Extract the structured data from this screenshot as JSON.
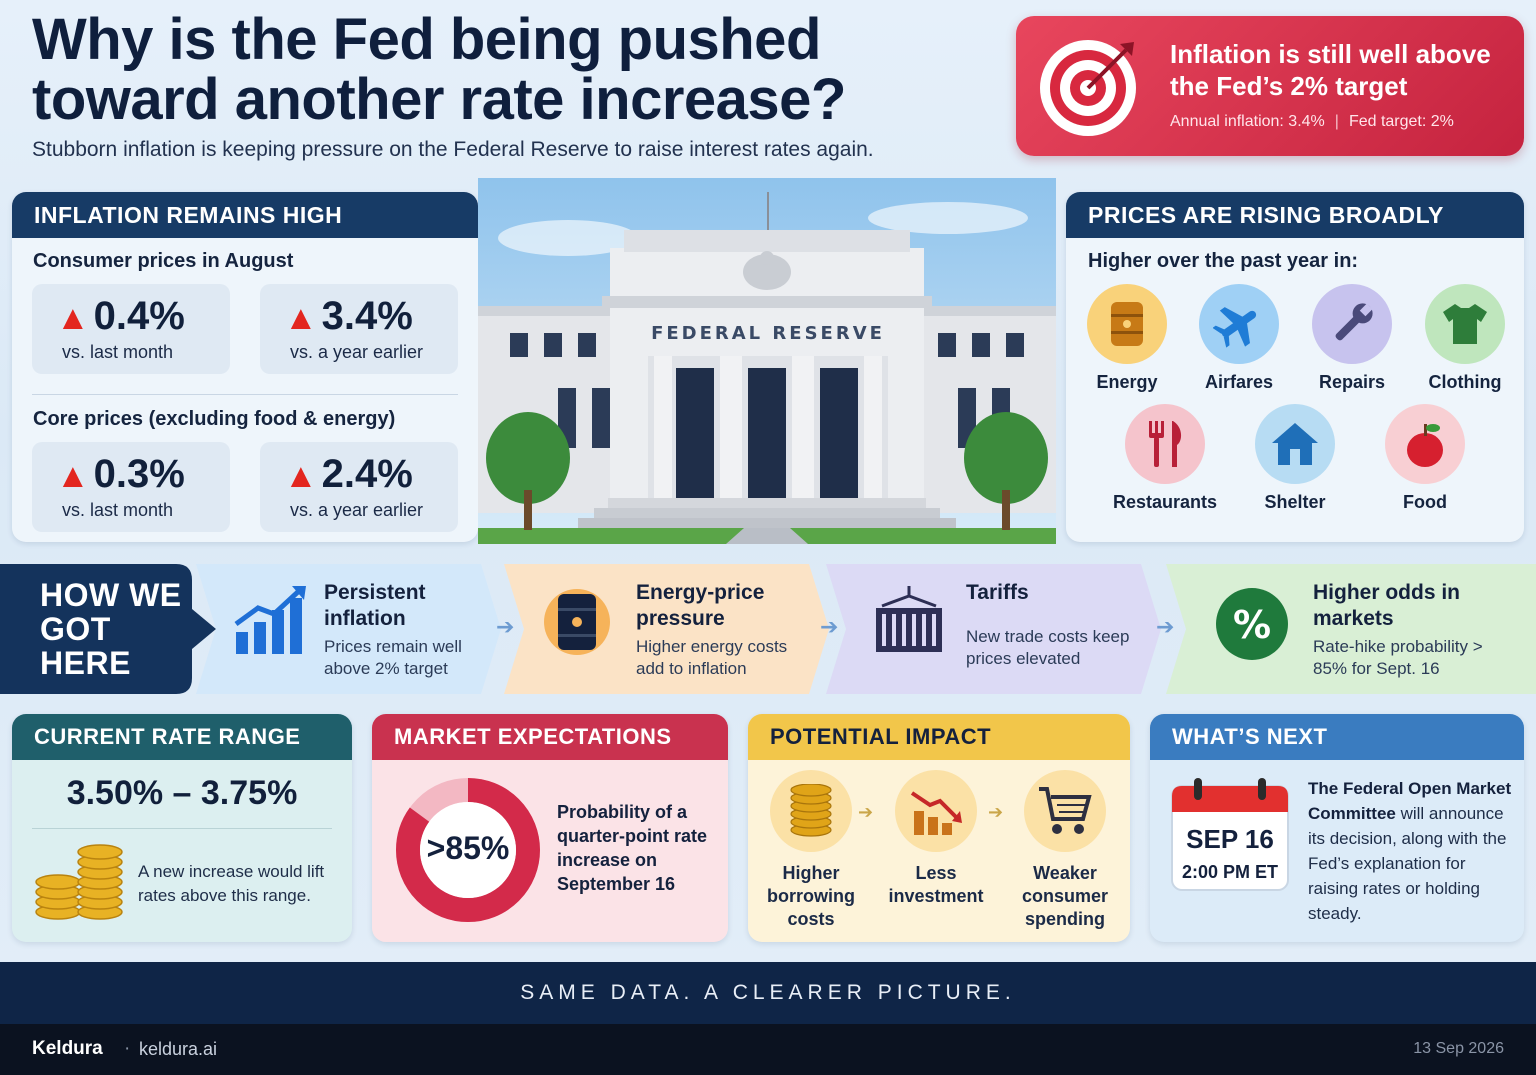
{
  "header": {
    "title": "Why is the Fed being pushed toward another rate increase?",
    "subtitle": "Stubborn inflation is keeping pressure on the Federal Reserve to raise interest rates again."
  },
  "target_card": {
    "headline": "Inflation is still well above the Fed’s 2% target",
    "annual": "Annual inflation: 3.4%",
    "separator": "|",
    "target": "Fed target: 2%"
  },
  "inflation": {
    "heading": "INFLATION REMAINS HIGH",
    "consumer_label": "Consumer prices in August",
    "consumer_month_value": "0.4%",
    "consumer_month_caption": "vs. last month",
    "consumer_year_value": "3.4%",
    "consumer_year_caption": "vs. a year earlier",
    "core_label": "Core prices (excluding food & energy)",
    "core_month_value": "0.3%",
    "core_month_caption": "vs. last month",
    "core_year_value": "2.4%",
    "core_year_caption": "vs. a year earlier"
  },
  "building": {
    "sign": "FEDERAL RESERVE"
  },
  "prices": {
    "heading": "PRICES ARE RISING BROADLY",
    "subheading": "Higher over the past year in:",
    "categories": [
      {
        "label": "Energy",
        "icon": "oil-barrel-icon",
        "color": "#f9d27a"
      },
      {
        "label": "Airfares",
        "icon": "airplane-icon",
        "color": "#9fd0f5"
      },
      {
        "label": "Repairs",
        "icon": "wrench-icon",
        "color": "#c7c3ee"
      },
      {
        "label": "Clothing",
        "icon": "shirt-icon",
        "color": "#bfe6bd"
      },
      {
        "label": "Restaurants",
        "icon": "fork-knife-icon",
        "color": "#f5c4cc"
      },
      {
        "label": "Shelter",
        "icon": "house-icon",
        "color": "#b7dcf3"
      },
      {
        "label": "Food",
        "icon": "apple-icon",
        "color": "#f8cfd3"
      }
    ]
  },
  "how": {
    "label": "HOW WE GOT HERE",
    "steps": [
      {
        "title": "Persistent inflation",
        "desc": "Prices remain well above 2% target",
        "icon": "rising-chart-icon"
      },
      {
        "title": "Energy-price pressure",
        "desc": "Higher energy costs add to inflation",
        "icon": "oil-barrel-icon"
      },
      {
        "title": "Tariffs",
        "desc": "New trade costs keep prices elevated",
        "icon": "shipping-container-icon"
      },
      {
        "title": "Higher odds in markets",
        "desc": "Rate-hike probability > 85% for Sept. 16",
        "icon": "percent-icon"
      }
    ]
  },
  "rate": {
    "heading": "CURRENT RATE RANGE",
    "range": "3.50% – 3.75%",
    "note": "A new increase would lift rates above this range."
  },
  "market": {
    "heading": "MARKET EXPECTATIONS",
    "value_label": ">85%",
    "probability": 0.85,
    "desc": "Probability of a quarter-point rate increase on September 16"
  },
  "impact": {
    "heading": "POTENTIAL IMPACT",
    "items": [
      {
        "label": "Higher borrowing costs",
        "icon": "coins-icon"
      },
      {
        "label": "Less investment",
        "icon": "declining-chart-icon"
      },
      {
        "label": "Weaker consumer spending",
        "icon": "shopping-cart-icon"
      }
    ]
  },
  "next": {
    "heading": "WHAT’S NEXT",
    "date": "SEP 16",
    "time": "2:00 PM ET",
    "desc_bold": "The Federal Open Market Committee",
    "desc": " will announce its decision, along with the Fed’s explanation for raising rates or holding steady."
  },
  "banner": "SAME DATA. A CLEARER PICTURE.",
  "footer": {
    "brand": "Keldura",
    "dot": "·",
    "url": "keldura.ai",
    "date": "13 Sep 2026"
  },
  "colors": {
    "navy": "#173b66",
    "teal": "#1f5f6b",
    "red": "#c9324f",
    "gold": "#f2c64a",
    "blue": "#3a7cc0",
    "arrow_up": "#e3261f"
  }
}
